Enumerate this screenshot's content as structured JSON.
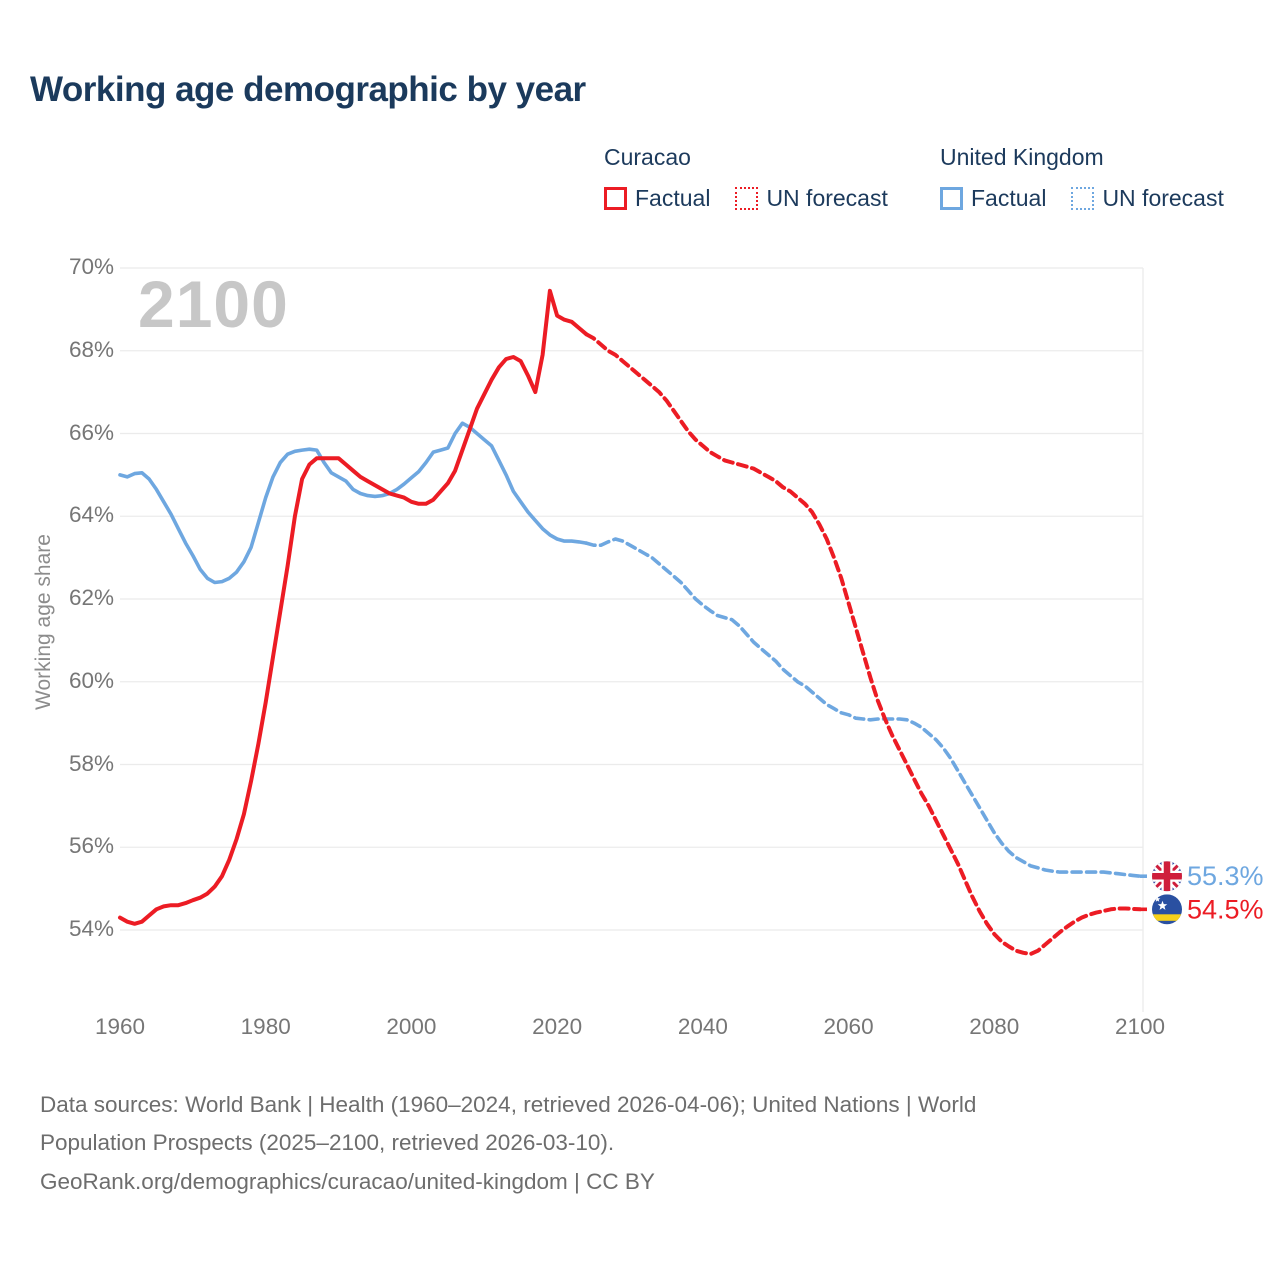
{
  "title": "Working age demographic by year",
  "watermark": "2100",
  "colors": {
    "curacao": "#ec1c24",
    "uk": "#6ea7e0",
    "title_navy": "#1b3a5c",
    "axis_gray": "#767676",
    "grid_gray": "#ebebeb",
    "watermark_gray": "#c7c7c7",
    "footer_gray": "#6d6d6d"
  },
  "legend": {
    "groups": [
      {
        "name": "Curacao",
        "color": "#ec1c24",
        "items": [
          {
            "label": "Factual",
            "style": "solid"
          },
          {
            "label": "UN forecast",
            "style": "dotted"
          }
        ]
      },
      {
        "name": "United Kingdom",
        "color": "#6ea7e0",
        "items": [
          {
            "label": "Factual",
            "style": "solid"
          },
          {
            "label": "UN forecast",
            "style": "dotted"
          }
        ]
      }
    ]
  },
  "y_axis": {
    "title": "Working age share",
    "tick_labels": [
      "70%",
      "68%",
      "66%",
      "64%",
      "62%",
      "60%",
      "58%",
      "56%",
      "54%"
    ],
    "tick_values": [
      70,
      68,
      66,
      64,
      62,
      60,
      58,
      56,
      54
    ]
  },
  "x_axis": {
    "tick_labels": [
      "1960",
      "1980",
      "2000",
      "2020",
      "2040",
      "2060",
      "2080",
      "2100"
    ],
    "tick_values": [
      1960,
      1980,
      2000,
      2020,
      2040,
      2060,
      2080,
      2100
    ]
  },
  "end_labels": [
    {
      "series": "uk",
      "flag": "united-kingdom-flag",
      "value_text": "55.3%",
      "value": 55.3,
      "color": "#6ea7e0"
    },
    {
      "series": "curacao",
      "flag": "curacao-flag",
      "value_text": "54.5%",
      "value": 54.5,
      "color": "#ec1c24"
    }
  ],
  "footer": {
    "line1": "Data sources: World Bank | Health (1960–2024, retrieved 2026-04-06); United Nations | World",
    "line2": "Population Prospects (2025–2100, retrieved 2026-03-10).",
    "line3": "GeoRank.org/demographics/curacao/united-kingdom | CC BY"
  },
  "chart_data": {
    "type": "line",
    "title": "Working age demographic by year",
    "xlabel": "",
    "ylabel": "Working age share",
    "x_range": [
      1960,
      2100
    ],
    "ylim": [
      53,
      70.5
    ],
    "grid": "horizontal",
    "legend_position": "top-right",
    "y_axis_top": 70,
    "series": [
      {
        "name": "United Kingdom factual",
        "country": "United Kingdom",
        "color": "#6ea7e0",
        "dash": "solid",
        "start_year": 1960,
        "end_year": 2024,
        "values": [
          65.0,
          64.95,
          65.03,
          65.05,
          64.9,
          64.65,
          64.35,
          64.05,
          63.7,
          63.35,
          63.05,
          62.72,
          62.5,
          62.4,
          62.42,
          62.5,
          62.65,
          62.9,
          63.25,
          63.85,
          64.45,
          64.95,
          65.3,
          65.5,
          65.57,
          65.6,
          65.62,
          65.6,
          65.3,
          65.05,
          64.95,
          64.85,
          64.65,
          64.55,
          64.5,
          64.48,
          64.5,
          64.55,
          64.65,
          64.78,
          64.93,
          65.08,
          65.3,
          65.55,
          65.6,
          65.65,
          66.0,
          66.25,
          66.15,
          66.0,
          65.85,
          65.7,
          65.35,
          65.0,
          64.6,
          64.35,
          64.1,
          63.9,
          63.7,
          63.55,
          63.45,
          63.4,
          63.4,
          63.38,
          63.35
        ]
      },
      {
        "name": "United Kingdom UN forecast",
        "country": "United Kingdom",
        "color": "#6ea7e0",
        "dash": "dashed",
        "start_year": 2024,
        "end_year": 2100,
        "values": [
          63.35,
          63.3,
          63.3,
          63.38,
          63.45,
          63.4,
          63.3,
          63.2,
          63.1,
          63.0,
          62.85,
          62.7,
          62.55,
          62.4,
          62.2,
          62.0,
          61.85,
          61.72,
          61.6,
          61.55,
          61.5,
          61.35,
          61.15,
          60.95,
          60.8,
          60.65,
          60.5,
          60.3,
          60.15,
          60.0,
          59.9,
          59.75,
          59.6,
          59.45,
          59.35,
          59.25,
          59.2,
          59.12,
          59.1,
          59.08,
          59.1,
          59.1,
          59.1,
          59.1,
          59.08,
          59.0,
          58.9,
          58.75,
          58.6,
          58.4,
          58.15,
          57.85,
          57.55,
          57.25,
          56.95,
          56.65,
          56.35,
          56.1,
          55.9,
          55.75,
          55.65,
          55.55,
          55.5,
          55.45,
          55.42,
          55.4,
          55.4,
          55.4,
          55.4,
          55.4,
          55.4,
          55.4,
          55.38,
          55.36,
          55.34,
          55.32,
          55.3
        ]
      },
      {
        "name": "Curacao factual",
        "country": "Curacao",
        "color": "#ec1c24",
        "dash": "solid",
        "start_year": 1960,
        "end_year": 2024,
        "values": [
          54.3,
          54.2,
          54.15,
          54.2,
          54.35,
          54.5,
          54.57,
          54.6,
          54.6,
          54.65,
          54.72,
          54.78,
          54.88,
          55.05,
          55.3,
          55.7,
          56.2,
          56.8,
          57.6,
          58.5,
          59.5,
          60.6,
          61.7,
          62.8,
          64.0,
          64.9,
          65.25,
          65.4,
          65.4,
          65.4,
          65.4,
          65.25,
          65.1,
          64.95,
          64.85,
          64.75,
          64.65,
          64.55,
          64.5,
          64.45,
          64.35,
          64.3,
          64.3,
          64.4,
          64.6,
          64.8,
          65.1,
          65.6,
          66.1,
          66.6,
          66.95,
          67.3,
          67.6,
          67.8,
          67.85,
          67.75,
          67.4,
          67.0,
          67.9,
          69.45,
          68.85,
          68.75,
          68.7,
          68.55,
          68.4
        ]
      },
      {
        "name": "Curacao UN forecast",
        "country": "Curacao",
        "color": "#ec1c24",
        "dash": "dashed",
        "start_year": 2024,
        "end_year": 2100,
        "values": [
          68.4,
          68.3,
          68.15,
          68.0,
          67.9,
          67.75,
          67.6,
          67.45,
          67.3,
          67.15,
          67.0,
          66.8,
          66.55,
          66.3,
          66.05,
          65.85,
          65.7,
          65.55,
          65.45,
          65.35,
          65.3,
          65.25,
          65.2,
          65.15,
          65.05,
          64.95,
          64.85,
          64.7,
          64.6,
          64.45,
          64.3,
          64.1,
          63.8,
          63.45,
          63.0,
          62.5,
          61.9,
          61.3,
          60.7,
          60.1,
          59.55,
          59.1,
          58.7,
          58.35,
          58.0,
          57.65,
          57.3,
          57.0,
          56.65,
          56.3,
          55.95,
          55.6,
          55.2,
          54.8,
          54.45,
          54.15,
          53.9,
          53.72,
          53.6,
          53.5,
          53.45,
          53.42,
          53.5,
          53.65,
          53.8,
          53.95,
          54.08,
          54.2,
          54.3,
          54.37,
          54.42,
          54.46,
          54.5,
          54.52,
          54.52,
          54.51,
          54.5
        ]
      }
    ]
  }
}
